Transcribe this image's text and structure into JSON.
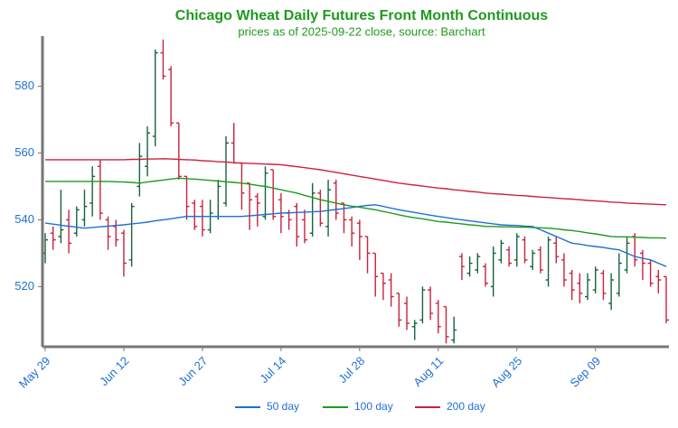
{
  "chart_data": {
    "type": "ohlc",
    "title": "Chicago Wheat Daily Futures Front Month Continuous",
    "subtitle": "prices as of 2025-09-22 close, source: Barchart",
    "categories": [
      "May 29",
      null,
      null,
      null,
      null,
      null,
      null,
      null,
      null,
      null,
      "Jun 12",
      null,
      null,
      null,
      null,
      null,
      null,
      null,
      null,
      null,
      "Jun 27",
      null,
      null,
      null,
      null,
      null,
      null,
      null,
      null,
      null,
      "Jul 14",
      null,
      null,
      null,
      null,
      null,
      null,
      null,
      null,
      null,
      "Jul 28",
      null,
      null,
      null,
      null,
      null,
      null,
      null,
      null,
      null,
      "Aug 11",
      null,
      null,
      null,
      null,
      null,
      null,
      null,
      null,
      null,
      "Aug 25",
      null,
      null,
      null,
      null,
      null,
      null,
      null,
      null,
      null,
      "Sep 09",
      null,
      null,
      null,
      null,
      null,
      null,
      null,
      null,
      null
    ],
    "open": [
      530,
      536,
      535,
      540,
      536,
      540,
      545,
      556,
      540,
      538,
      536,
      528,
      550,
      556,
      565,
      590,
      585,
      569,
      553,
      545,
      544,
      537,
      541,
      545,
      563,
      557,
      551,
      547,
      541,
      555,
      546,
      542,
      544,
      540,
      536,
      548,
      538,
      551,
      545,
      540,
      539,
      535,
      530,
      524,
      522,
      518,
      515,
      508,
      510,
      519,
      515,
      514,
      504,
      529,
      524,
      525,
      526,
      520,
      528,
      531,
      528,
      534,
      526,
      531,
      522,
      533,
      528,
      524,
      521,
      517,
      519,
      524,
      515,
      518,
      525,
      535,
      530,
      527,
      523,
      523
    ],
    "high": [
      536,
      538,
      549,
      543,
      544,
      549,
      556,
      558,
      541,
      540,
      537,
      545,
      563,
      568,
      591,
      594,
      586,
      569,
      553,
      546,
      546,
      546,
      552,
      565,
      569,
      557,
      551,
      548,
      556,
      555,
      548,
      543,
      545,
      543,
      551,
      549,
      552,
      552,
      545,
      541,
      540,
      535,
      530,
      524,
      524,
      518,
      517,
      510,
      520,
      520,
      516,
      514,
      511,
      530,
      529,
      530,
      527,
      532,
      534,
      532,
      536,
      535,
      531,
      532,
      535,
      535,
      530,
      525,
      524,
      524,
      526,
      525,
      524,
      530,
      535,
      536,
      531,
      528,
      525,
      523
    ],
    "low": [
      527,
      531,
      533,
      530,
      535,
      538,
      541,
      540,
      531,
      532,
      523,
      526,
      547,
      553,
      562,
      582,
      568,
      552,
      540,
      537,
      535,
      536,
      540,
      544,
      557,
      543,
      537,
      538,
      540,
      540,
      536,
      537,
      532,
      533,
      535,
      538,
      535,
      540,
      536,
      532,
      528,
      524,
      517,
      516,
      514,
      508,
      507,
      504,
      509,
      510,
      506,
      503,
      503,
      522,
      523,
      524,
      520,
      517,
      527,
      526,
      526,
      527,
      525,
      524,
      520,
      527,
      520,
      516,
      515,
      516,
      518,
      516,
      513,
      517,
      524,
      526,
      522,
      520,
      518,
      509
    ],
    "close": [
      534,
      534,
      537,
      533,
      543,
      544,
      553,
      542,
      535,
      534,
      527,
      544,
      559,
      566,
      590,
      583,
      569,
      553,
      544,
      538,
      537,
      542,
      550,
      563,
      557,
      548,
      546,
      545,
      554,
      541,
      541,
      540,
      535,
      534,
      548,
      539,
      549,
      542,
      540,
      536,
      535,
      530,
      523,
      521,
      517,
      510,
      509,
      509,
      519,
      512,
      508,
      505,
      507,
      526,
      527,
      529,
      521,
      530,
      533,
      527,
      535,
      528,
      530,
      525,
      534,
      529,
      522,
      519,
      518,
      522,
      525,
      518,
      522,
      527,
      533,
      528,
      527,
      521,
      522,
      510
    ],
    "up_color": "#17633a",
    "down_color": "#c8233b",
    "series": [
      {
        "name": "50 day",
        "color": "#1f6fd6",
        "values": [
          539,
          538.7,
          538.4,
          538.1,
          537.8,
          537.5,
          537.7,
          537.9,
          538.1,
          538.3,
          538.5,
          538.8,
          539,
          539.3,
          539.7,
          540,
          540.3,
          540.7,
          541,
          541,
          541,
          541,
          541,
          541,
          541,
          541,
          541.2,
          541.4,
          541.6,
          541.8,
          542,
          542.1,
          542.2,
          542.3,
          542.4,
          542.5,
          542.8,
          543.1,
          543.4,
          543.7,
          544,
          544.3,
          544.5,
          544,
          543.5,
          543,
          542.6,
          542.2,
          541.8,
          541.4,
          541,
          540.7,
          540.3,
          540,
          539.7,
          539.4,
          539.1,
          538.8,
          538.5,
          538.4,
          538.3,
          538.1,
          538,
          537,
          536,
          535,
          534,
          533,
          532.7,
          532.3,
          532,
          531.7,
          531.3,
          531,
          530,
          529,
          528.5,
          528,
          527,
          526
        ]
      },
      {
        "name": "100 day",
        "color": "#1d9a1d",
        "values": [
          551.5,
          551.5,
          551.5,
          551.5,
          551.5,
          551.5,
          551.5,
          551.5,
          551.5,
          551.4,
          551.3,
          551.2,
          551,
          551.3,
          551.6,
          551.9,
          552.2,
          552.5,
          552.3,
          552.2,
          552,
          551.8,
          551.6,
          551.4,
          551.2,
          551,
          550.7,
          550.3,
          550,
          549.5,
          549,
          548.5,
          548,
          547.3,
          546.7,
          546,
          545.5,
          545,
          544.5,
          544.1,
          543.8,
          543.4,
          543,
          542.5,
          542,
          541.5,
          541,
          540.6,
          540.3,
          539.9,
          539.5,
          539.3,
          539,
          538.8,
          538.5,
          538.3,
          538,
          538,
          537.9,
          537.9,
          537.8,
          537.8,
          537.7,
          537.6,
          537.5,
          537.3,
          537,
          536.8,
          536.5,
          536.1,
          535.8,
          535.4,
          535,
          534.9,
          534.9,
          534.8,
          534.7,
          534.6,
          534.6,
          534.5
        ]
      },
      {
        "name": "200 day",
        "color": "#cc2240",
        "values": [
          558,
          558,
          558,
          558,
          558,
          558,
          558,
          558,
          558,
          558,
          558,
          558.1,
          558.1,
          558.2,
          558.2,
          558.3,
          558.2,
          558.1,
          558,
          557.9,
          557.7,
          557.6,
          557.4,
          557.3,
          557.1,
          557,
          556.9,
          556.8,
          556.7,
          556.6,
          556.5,
          556.2,
          555.9,
          555.6,
          555.3,
          555,
          554.6,
          554.2,
          553.8,
          553.4,
          553,
          552.6,
          552.2,
          551.8,
          551.4,
          551,
          550.7,
          550.4,
          550.1,
          549.8,
          549.5,
          549.3,
          549,
          548.8,
          548.5,
          548.3,
          548,
          547.8,
          547.7,
          547.5,
          547.3,
          547.2,
          547,
          546.8,
          546.7,
          546.5,
          546.3,
          546.2,
          546,
          545.8,
          545.7,
          545.5,
          545.3,
          545.2,
          545,
          544.9,
          544.8,
          544.7,
          544.6,
          544.5
        ]
      }
    ],
    "ylim": [
      502,
      595
    ],
    "yticks": [
      520,
      540,
      560,
      580
    ],
    "legend": "bottom"
  }
}
